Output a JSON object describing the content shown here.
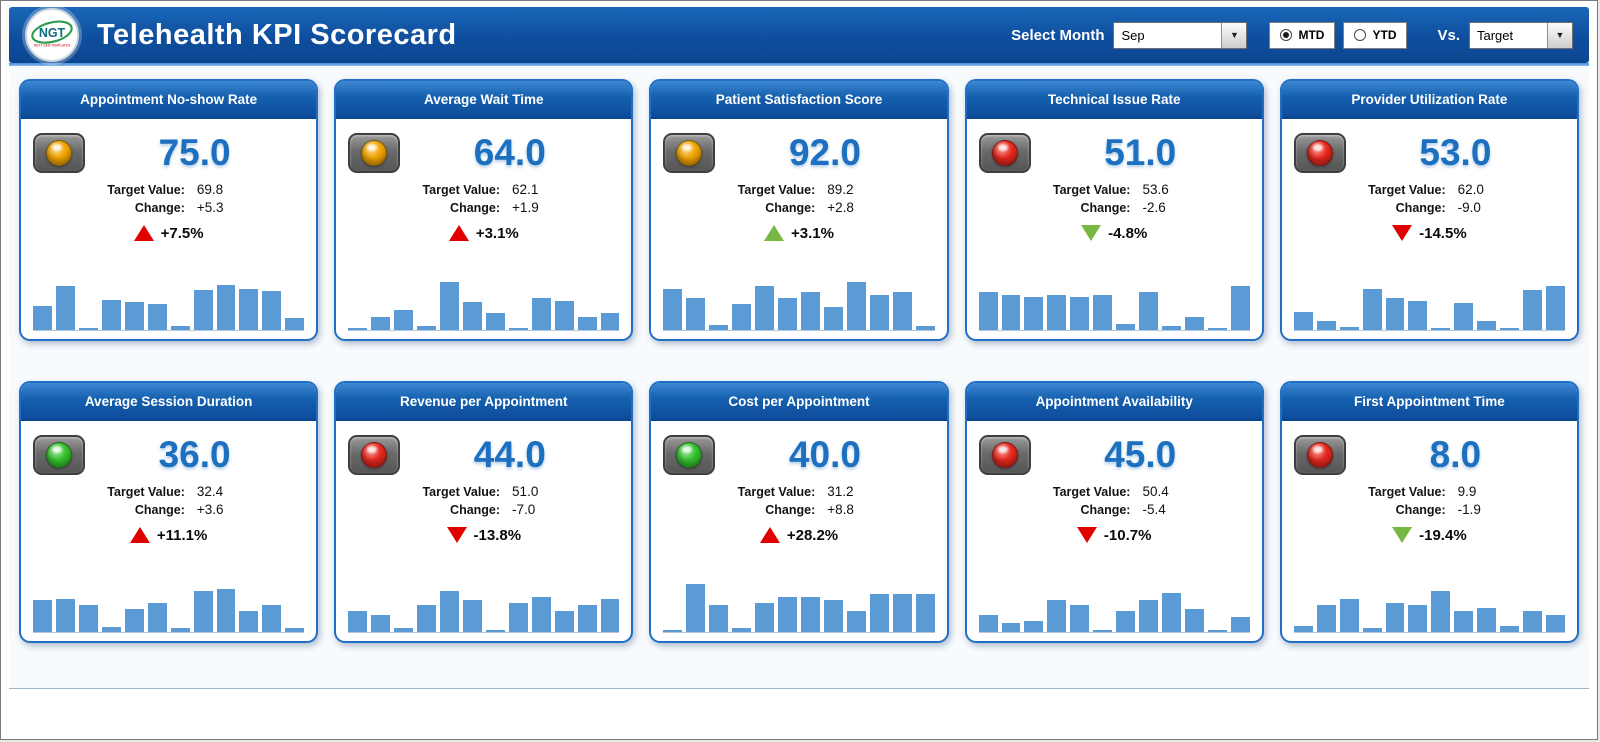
{
  "icons": {
    "dropdown_arrow": "▼"
  },
  "header": {
    "logo": {
      "text": "NGT",
      "subtext": "NEXT GEN TEMPLATES"
    },
    "title": "Telehealth KPI Scorecard",
    "month_label": "Select Month",
    "month_value": "Sep",
    "period_options": [
      {
        "label": "MTD",
        "selected": true
      },
      {
        "label": "YTD",
        "selected": false
      }
    ],
    "vs_label": "Vs.",
    "vs_value": "Target"
  },
  "labels": {
    "target": "Target Value:",
    "change": "Change:"
  },
  "colors": {
    "amber": "#f2a500",
    "red": "#e8281e",
    "green": "#35c42f",
    "arrow_red": "#e00000",
    "arrow_green": "#77b843",
    "bar": "#5b9bd5",
    "accent": "#1f6fc4"
  },
  "cards": [
    {
      "title": "Appointment No-show Rate",
      "light": "amber",
      "value": "75.0",
      "target": "69.8",
      "change": "+5.3",
      "pct": "+7.5%",
      "trend": "up",
      "trend_color": "red",
      "bars": [
        40,
        72,
        4,
        50,
        46,
        42,
        6,
        66,
        74,
        68,
        64,
        20
      ]
    },
    {
      "title": "Average Wait Time",
      "light": "amber",
      "value": "64.0",
      "target": "62.1",
      "change": "+1.9",
      "pct": "+3.1%",
      "trend": "up",
      "trend_color": "red",
      "bars": [
        4,
        22,
        32,
        6,
        78,
        46,
        28,
        4,
        52,
        48,
        22,
        28
      ]
    },
    {
      "title": "Patient Satisfaction Score",
      "light": "amber",
      "value": "92.0",
      "target": "89.2",
      "change": "+2.8",
      "pct": "+3.1%",
      "trend": "up",
      "trend_color": "green",
      "bars": [
        68,
        52,
        8,
        42,
        72,
        52,
        62,
        38,
        78,
        58,
        62,
        6
      ]
    },
    {
      "title": "Technical Issue Rate",
      "light": "red",
      "value": "51.0",
      "target": "53.6",
      "change": "-2.6",
      "pct": "-4.8%",
      "trend": "down",
      "trend_color": "green",
      "bars": [
        62,
        58,
        54,
        58,
        54,
        58,
        10,
        62,
        6,
        22,
        4,
        72
      ]
    },
    {
      "title": "Provider Utilization Rate",
      "light": "red",
      "value": "53.0",
      "target": "62.0",
      "change": "-9.0",
      "pct": "-14.5%",
      "trend": "down",
      "trend_color": "red",
      "bars": [
        30,
        14,
        5,
        68,
        52,
        48,
        4,
        44,
        14,
        4,
        66,
        72
      ]
    },
    {
      "title": "Average Session Duration",
      "light": "green",
      "value": "36.0",
      "target": "32.4",
      "change": "+3.6",
      "pct": "+11.1%",
      "trend": "up",
      "trend_color": "red",
      "bars": [
        52,
        54,
        44,
        8,
        38,
        48,
        6,
        68,
        70,
        34,
        44,
        6
      ]
    },
    {
      "title": "Revenue per Appointment",
      "light": "red",
      "value": "44.0",
      "target": "51.0",
      "change": "-7.0",
      "pct": "-13.8%",
      "trend": "down",
      "trend_color": "red",
      "bars": [
        34,
        28,
        6,
        44,
        68,
        52,
        4,
        48,
        58,
        34,
        44,
        54
      ]
    },
    {
      "title": "Cost per Appointment",
      "light": "green",
      "value": "40.0",
      "target": "31.2",
      "change": "+8.8",
      "pct": "+28.2%",
      "trend": "up",
      "trend_color": "red",
      "bars": [
        4,
        78,
        44,
        6,
        48,
        58,
        58,
        52,
        34,
        62,
        62,
        62
      ]
    },
    {
      "title": "Appointment Availability",
      "light": "red",
      "value": "45.0",
      "target": "50.4",
      "change": "-5.4",
      "pct": "-10.7%",
      "trend": "down",
      "trend_color": "red",
      "bars": [
        28,
        14,
        18,
        52,
        44,
        4,
        34,
        52,
        64,
        38,
        4,
        24
      ]
    },
    {
      "title": "First Appointment Time",
      "light": "red",
      "value": "8.0",
      "target": "9.9",
      "change": "-1.9",
      "pct": "-19.4%",
      "trend": "down",
      "trend_color": "green",
      "bars": [
        10,
        44,
        54,
        6,
        48,
        44,
        68,
        34,
        40,
        10,
        34,
        28
      ]
    }
  ]
}
